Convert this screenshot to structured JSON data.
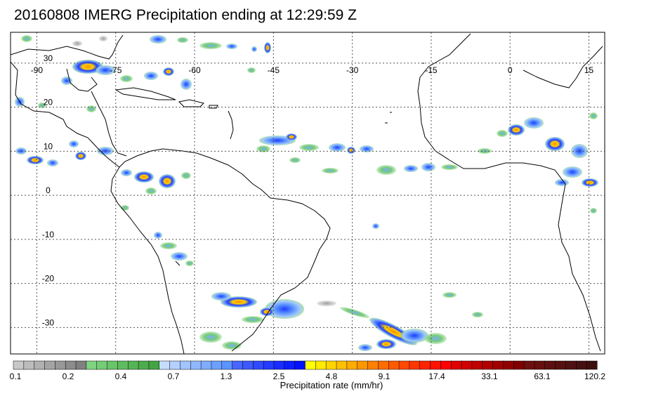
{
  "title": "20160808 IMERG Precipitation ending at 12:29:59 Z",
  "map": {
    "lon_range": [
      -95,
      18
    ],
    "lat_range": [
      -36,
      37
    ],
    "lon_ticks": [
      -90,
      -75,
      -60,
      -45,
      -30,
      -15,
      0,
      15
    ],
    "lat_ticks": [
      30,
      20,
      10,
      0,
      -10,
      -20,
      -30
    ],
    "lon_tick_labels": [
      "-90",
      "-75",
      "-60",
      "-45",
      "-30",
      "-15",
      "0",
      "15"
    ],
    "lat_tick_labels": [
      "30",
      "20",
      "10",
      "0",
      "-10",
      "-20",
      "-30"
    ],
    "grid": "dotted",
    "coastline_color": "#000000"
  },
  "colorbar": {
    "label": "Precipitation rate (mm/hr)",
    "tick_labels": [
      "0.1",
      "0.2",
      "0.4",
      "0.7",
      "1.3",
      "2.5",
      "4.8",
      "9.1",
      "17.4",
      "33.1",
      "63.1",
      "120.2"
    ],
    "colors": [
      "#c8c8c8",
      "#bcbcbc",
      "#b0b0b0",
      "#a4a4a4",
      "#989898",
      "#8c8c8c",
      "#808080",
      "#7fd47f",
      "#74cc74",
      "#6ac46a",
      "#60bc60",
      "#56b456",
      "#4cac4c",
      "#42a442",
      "#c6dcff",
      "#b4d0ff",
      "#a2c4ff",
      "#90b8ff",
      "#7eacff",
      "#6ca0ff",
      "#5a94ff",
      "#4866ff",
      "#3c58ff",
      "#304aff",
      "#243cff",
      "#182eff",
      "#0c20ff",
      "#0012ff",
      "#ffff00",
      "#ffea00",
      "#ffd500",
      "#ffc000",
      "#ffab00",
      "#ff9600",
      "#ff8100",
      "#ff6c00",
      "#ff5a00",
      "#ff4800",
      "#ff3600",
      "#ff2400",
      "#ff1200",
      "#ff0000",
      "#e00000",
      "#d00000",
      "#c00000",
      "#b00000",
      "#a00000",
      "#900000",
      "#800000",
      "#6e1010",
      "#661010",
      "#5e1010",
      "#561010",
      "#4e1010",
      "#461010",
      "#3e1010"
    ]
  }
}
